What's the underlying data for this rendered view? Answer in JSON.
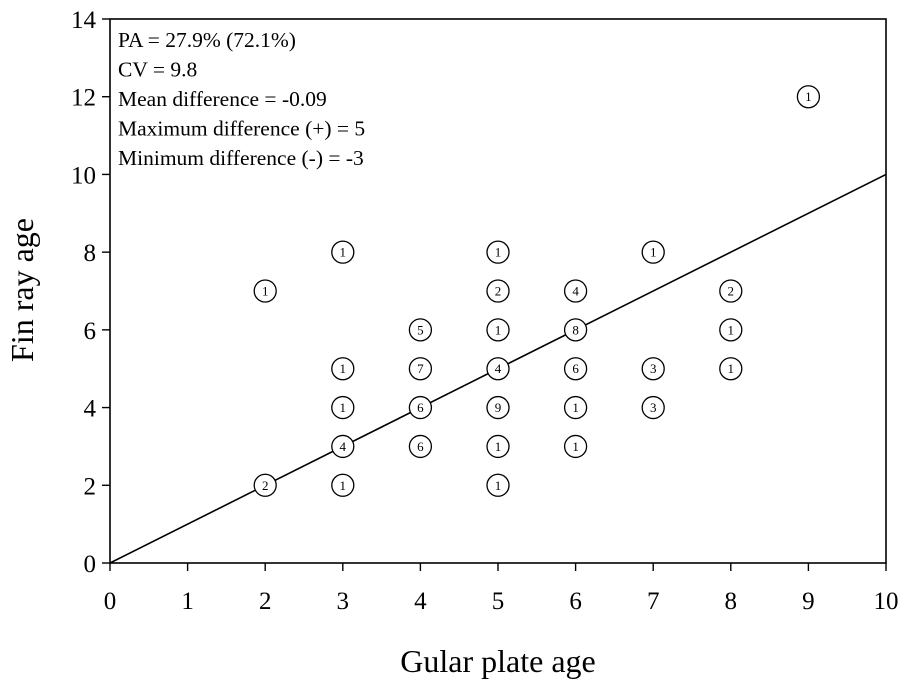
{
  "chart_data": {
    "type": "scatter",
    "title": "",
    "xlabel": "Gular plate age",
    "ylabel": "Fin ray age",
    "xlim": [
      0,
      10
    ],
    "ylim": [
      0,
      14
    ],
    "xticks": [
      0,
      1,
      2,
      3,
      4,
      5,
      6,
      7,
      8,
      9,
      10
    ],
    "yticks": [
      0,
      2,
      4,
      6,
      8,
      10,
      12,
      14
    ],
    "grid": false,
    "reference_line": {
      "x": [
        0,
        10
      ],
      "y": [
        0,
        10
      ]
    },
    "stats": [
      "PA = 27.9% (72.1%)",
      "CV = 9.8",
      "Mean difference = -0.09",
      "Maximum difference (+) = 5",
      "Minimum difference (-) = -3"
    ],
    "points": [
      {
        "x": 2,
        "y": 7,
        "n": "1"
      },
      {
        "x": 2,
        "y": 2,
        "n": "2"
      },
      {
        "x": 3,
        "y": 8,
        "n": "1"
      },
      {
        "x": 3,
        "y": 5,
        "n": "1"
      },
      {
        "x": 3,
        "y": 4,
        "n": "1"
      },
      {
        "x": 3,
        "y": 3,
        "n": "4"
      },
      {
        "x": 3,
        "y": 2,
        "n": "1"
      },
      {
        "x": 4,
        "y": 6,
        "n": "5"
      },
      {
        "x": 4,
        "y": 5,
        "n": "7"
      },
      {
        "x": 4,
        "y": 4,
        "n": "6"
      },
      {
        "x": 4,
        "y": 3,
        "n": "6"
      },
      {
        "x": 5,
        "y": 8,
        "n": "1"
      },
      {
        "x": 5,
        "y": 7,
        "n": "2"
      },
      {
        "x": 5,
        "y": 6,
        "n": "1"
      },
      {
        "x": 5,
        "y": 5,
        "n": "4"
      },
      {
        "x": 5,
        "y": 4,
        "n": "9"
      },
      {
        "x": 5,
        "y": 3,
        "n": "1"
      },
      {
        "x": 5,
        "y": 2,
        "n": "1"
      },
      {
        "x": 6,
        "y": 7,
        "n": "4"
      },
      {
        "x": 6,
        "y": 6,
        "n": "8"
      },
      {
        "x": 6,
        "y": 5,
        "n": "6"
      },
      {
        "x": 6,
        "y": 4,
        "n": "1"
      },
      {
        "x": 6,
        "y": 3,
        "n": "1"
      },
      {
        "x": 7,
        "y": 8,
        "n": "1"
      },
      {
        "x": 7,
        "y": 5,
        "n": "3"
      },
      {
        "x": 7,
        "y": 4,
        "n": "3"
      },
      {
        "x": 8,
        "y": 7,
        "n": "2"
      },
      {
        "x": 8,
        "y": 6,
        "n": "1"
      },
      {
        "x": 8,
        "y": 5,
        "n": "1"
      },
      {
        "x": 9,
        "y": 12,
        "n": "1"
      }
    ]
  }
}
